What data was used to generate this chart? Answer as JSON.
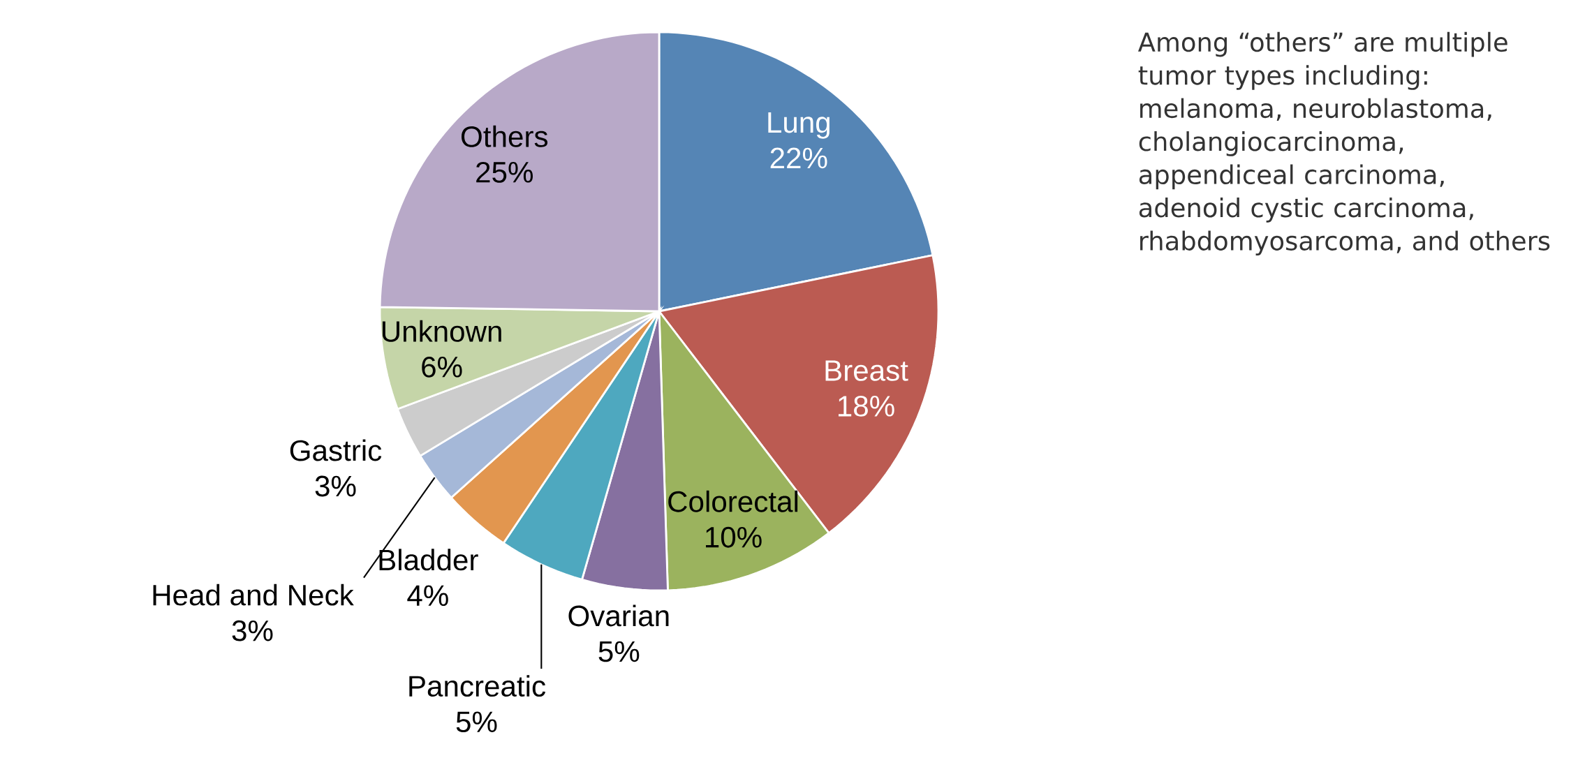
{
  "chart_data": {
    "type": "pie",
    "categories": [
      "Lung",
      "Breast",
      "Colorectal",
      "Ovarian",
      "Pancreatic",
      "Bladder",
      "Head and Neck",
      "Gastric",
      "Unknown",
      "Others"
    ],
    "values": [
      22,
      18,
      10,
      5,
      5,
      4,
      3,
      3,
      6,
      25
    ],
    "value_labels": [
      "22%",
      "18%",
      "10%",
      "5%",
      "5%",
      "4%",
      "3%",
      "3%",
      "6%",
      "25%"
    ],
    "colors": [
      "#5585b5",
      "#bb5b52",
      "#9bb35e",
      "#8670a0",
      "#4ea8bf",
      "#e2964f",
      "#a5b8d8",
      "#cccccc",
      "#c5d5a8",
      "#b8a9c8"
    ],
    "annotations": [
      "Among “others” are multiple tumor types including: melanoma, neuroblastoma, cholangiocarcinoma, appendiceal carcinoma, adenoid cystic carcinoma, rhabdomyosarcoma, and others"
    ]
  }
}
